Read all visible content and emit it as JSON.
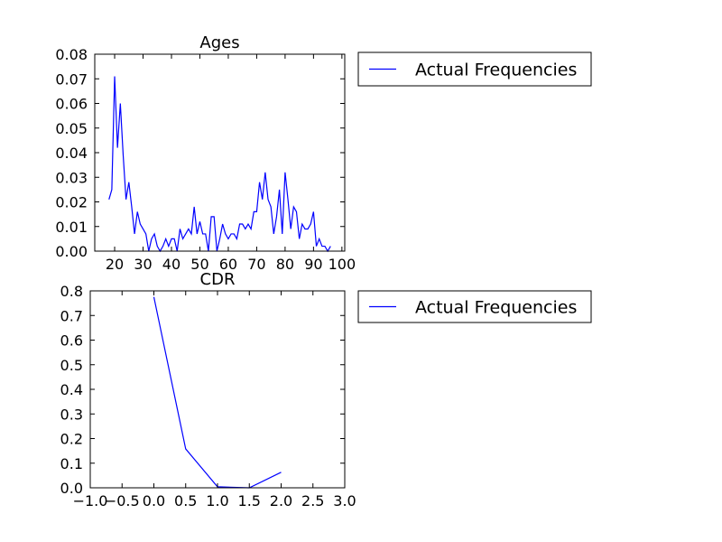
{
  "figure": {
    "background": "#ffffff"
  },
  "chart_data": [
    {
      "type": "line",
      "title": "Ages",
      "xlabel": "",
      "ylabel": "",
      "xlim": [
        13,
        101
      ],
      "ylim": [
        0,
        0.08
      ],
      "xticks": [
        20,
        30,
        40,
        50,
        60,
        70,
        80,
        90,
        100
      ],
      "yticks": [
        0.0,
        0.01,
        0.02,
        0.03,
        0.04,
        0.05,
        0.06,
        0.07,
        0.08
      ],
      "xtick_labels": [
        "20",
        "30",
        "40",
        "50",
        "60",
        "70",
        "80",
        "90",
        "100"
      ],
      "ytick_labels": [
        "0.00",
        "0.01",
        "0.02",
        "0.03",
        "0.04",
        "0.05",
        "0.06",
        "0.07",
        "0.08"
      ],
      "grid": false,
      "legend": {
        "placement": "outside-top-right",
        "entries": [
          "Actual Frequencies"
        ]
      },
      "series": [
        {
          "name": "Actual Frequencies",
          "color": "#0000ff",
          "x": [
            18,
            19,
            20,
            21,
            22,
            23,
            24,
            25,
            26,
            27,
            28,
            29,
            30,
            31,
            32,
            33,
            34,
            35,
            36,
            37,
            38,
            39,
            40,
            41,
            42,
            43,
            44,
            45,
            46,
            47,
            48,
            49,
            50,
            51,
            52,
            53,
            54,
            55,
            56,
            57,
            58,
            59,
            60,
            61,
            62,
            63,
            64,
            65,
            66,
            67,
            68,
            69,
            70,
            71,
            72,
            73,
            74,
            75,
            76,
            77,
            78,
            79,
            80,
            81,
            82,
            83,
            84,
            85,
            86,
            87,
            88,
            89,
            90,
            91,
            92,
            93,
            94,
            95,
            96
          ],
          "y": [
            0.021,
            0.025,
            0.071,
            0.042,
            0.06,
            0.039,
            0.021,
            0.028,
            0.018,
            0.007,
            0.016,
            0.011,
            0.009,
            0.007,
            0.0,
            0.005,
            0.007,
            0.002,
            0.0,
            0.002,
            0.005,
            0.002,
            0.005,
            0.005,
            0.0,
            0.009,
            0.005,
            0.007,
            0.009,
            0.007,
            0.018,
            0.007,
            0.012,
            0.007,
            0.007,
            0.0,
            0.014,
            0.014,
            0.0,
            0.005,
            0.011,
            0.007,
            0.005,
            0.007,
            0.007,
            0.005,
            0.011,
            0.011,
            0.009,
            0.011,
            0.009,
            0.016,
            0.016,
            0.028,
            0.021,
            0.032,
            0.021,
            0.018,
            0.007,
            0.014,
            0.025,
            0.007,
            0.032,
            0.021,
            0.009,
            0.018,
            0.016,
            0.005,
            0.011,
            0.009,
            0.009,
            0.011,
            0.016,
            0.002,
            0.005,
            0.002,
            0.002,
            0.0,
            0.002
          ]
        }
      ]
    },
    {
      "type": "line",
      "title": "CDR",
      "xlabel": "",
      "ylabel": "",
      "xlim": [
        -1.0,
        3.0
      ],
      "ylim": [
        0.0,
        0.8
      ],
      "xticks": [
        -1.0,
        -0.5,
        0.0,
        0.5,
        1.0,
        1.5,
        2.0,
        2.5,
        3.0
      ],
      "yticks": [
        0.0,
        0.1,
        0.2,
        0.3,
        0.4,
        0.5,
        0.6,
        0.7,
        0.8
      ],
      "xtick_labels": [
        "−1.0",
        "−0.5",
        "0.0",
        "0.5",
        "1.0",
        "1.5",
        "2.0",
        "2.5",
        "3.0"
      ],
      "ytick_labels": [
        "0.0",
        "0.1",
        "0.2",
        "0.3",
        "0.4",
        "0.5",
        "0.6",
        "0.7",
        "0.8"
      ],
      "grid": false,
      "legend": {
        "placement": "outside-top-right",
        "entries": [
          "Actual Frequencies"
        ]
      },
      "series": [
        {
          "name": "Actual Frequencies",
          "color": "#0000ff",
          "x": [
            0.0,
            0.5,
            1.0,
            1.5,
            2.0
          ],
          "y": [
            0.775,
            0.158,
            0.004,
            0.0,
            0.063
          ]
        }
      ]
    }
  ]
}
